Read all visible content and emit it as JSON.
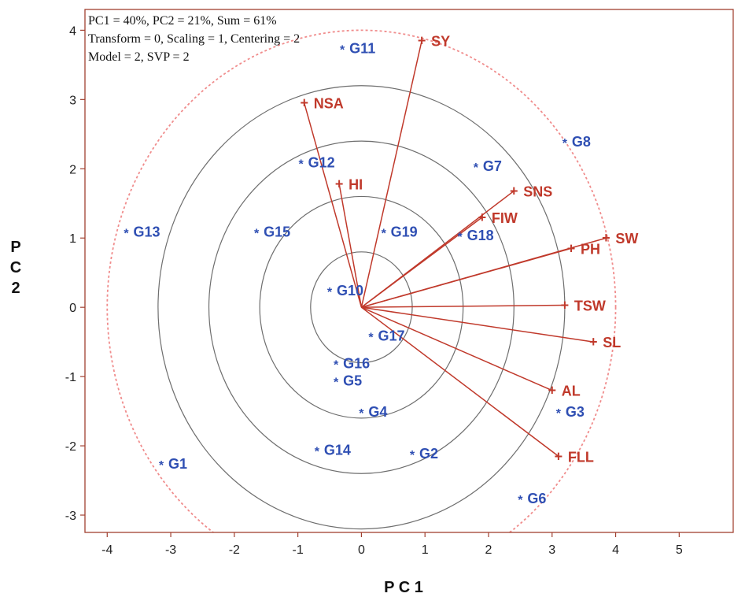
{
  "chart_data": {
    "type": "scatter",
    "subtype": "pca-biplot",
    "info_lines": [
      "PC1 = 40%, PC2 = 21%, Sum = 61%",
      "Transform = 0, Scaling = 1, Centering = 2",
      "Model = 2, SVP = 2"
    ],
    "xlabel": "P C 1",
    "ylabel": "P\nC\n2",
    "xlim": [
      -4.35,
      5.85
    ],
    "ylim": [
      -3.25,
      4.3
    ],
    "x_ticks": [
      -4,
      -3,
      -2,
      -1,
      0,
      1,
      2,
      3,
      4,
      5
    ],
    "y_ticks": [
      -3,
      -2,
      -1,
      0,
      1,
      2,
      3,
      4
    ],
    "concentric_circle_radii": [
      0.8,
      1.6,
      2.4,
      3.2
    ],
    "outer_dashed_circle_radius": 4.0,
    "genotype_marker": "*",
    "variable_marker": "+",
    "genotypes": [
      {
        "name": "G1",
        "x": -3.15,
        "y": -2.25
      },
      {
        "name": "G2",
        "x": 0.8,
        "y": -2.1
      },
      {
        "name": "G3",
        "x": 3.1,
        "y": -1.5
      },
      {
        "name": "G4",
        "x": 0.0,
        "y": -1.5
      },
      {
        "name": "G5",
        "x": -0.4,
        "y": -1.05
      },
      {
        "name": "G6",
        "x": 2.5,
        "y": -2.75
      },
      {
        "name": "G7",
        "x": 1.8,
        "y": 2.05
      },
      {
        "name": "G8",
        "x": 3.2,
        "y": 2.4
      },
      {
        "name": "G10",
        "x": -0.5,
        "y": 0.25
      },
      {
        "name": "G11",
        "x": -0.3,
        "y": 3.75
      },
      {
        "name": "G12",
        "x": -0.95,
        "y": 2.1
      },
      {
        "name": "G13",
        "x": -3.7,
        "y": 1.1
      },
      {
        "name": "G14",
        "x": -0.7,
        "y": -2.05
      },
      {
        "name": "G15",
        "x": -1.65,
        "y": 1.1
      },
      {
        "name": "G16",
        "x": -0.4,
        "y": -0.8
      },
      {
        "name": "G17",
        "x": 0.15,
        "y": -0.4
      },
      {
        "name": "G18",
        "x": 1.55,
        "y": 1.05
      },
      {
        "name": "G19",
        "x": 0.35,
        "y": 1.1
      }
    ],
    "variables": [
      {
        "name": "SY",
        "x": 0.95,
        "y": 3.85
      },
      {
        "name": "NSA",
        "x": -0.9,
        "y": 2.95
      },
      {
        "name": "HI",
        "x": -0.35,
        "y": 1.78
      },
      {
        "name": "SNS",
        "x": 2.4,
        "y": 1.68
      },
      {
        "name": "FIW",
        "x": 1.9,
        "y": 1.3
      },
      {
        "name": "SW",
        "x": 3.85,
        "y": 1.0
      },
      {
        "name": "PH",
        "x": 3.3,
        "y": 0.85
      },
      {
        "name": "TSW",
        "x": 3.2,
        "y": 0.03
      },
      {
        "name": "SL",
        "x": 3.65,
        "y": -0.5
      },
      {
        "name": "AL",
        "x": 3.0,
        "y": -1.2
      },
      {
        "name": "FLL",
        "x": 3.1,
        "y": -2.15
      }
    ],
    "colors": {
      "genotype": "#2f4fb3",
      "variable": "#c0392b",
      "frame": "#a04030",
      "circle": "#6e6e6e",
      "outer_circle": "#f08c8c"
    }
  }
}
